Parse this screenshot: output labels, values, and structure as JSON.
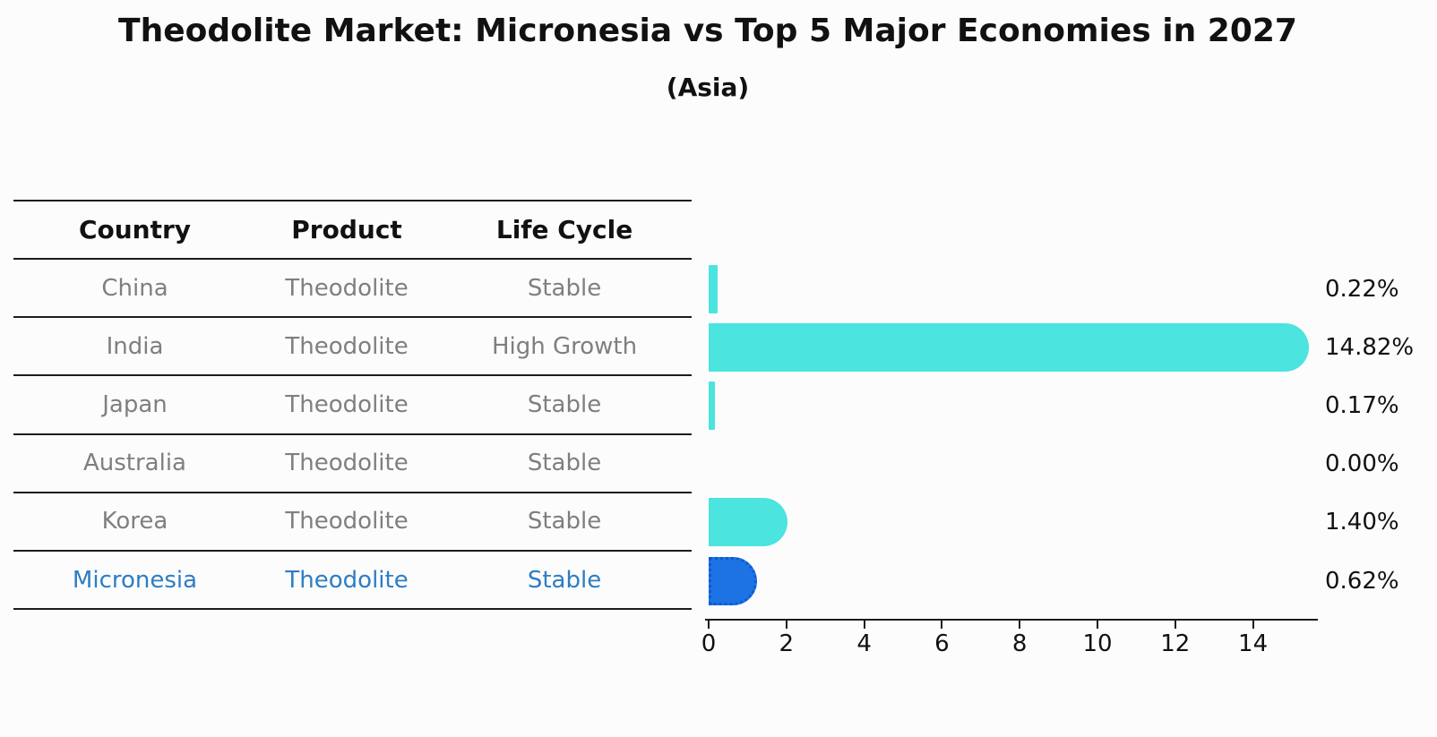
{
  "chart_data": {
    "type": "bar",
    "orientation": "horizontal",
    "title": "Theodolite Market: Micronesia vs Top 5 Major Economies in 2027",
    "subtitle": "(Asia)",
    "categories": [
      "China",
      "India",
      "Japan",
      "Australia",
      "Korea",
      "Micronesia"
    ],
    "values": [
      0.22,
      14.82,
      0.17,
      0.0,
      1.4,
      0.62
    ],
    "value_labels": [
      "0.22%",
      "14.82%",
      "0.17%",
      "0.00%",
      "1.40%",
      "0.62%"
    ],
    "unit": "%",
    "x_ticks": [
      0,
      2,
      4,
      6,
      8,
      10,
      12,
      14
    ],
    "xlim": [
      0,
      15.6
    ],
    "grid": "off",
    "legend": "none",
    "highlight_index": 5,
    "bar_style": "rounded-right-cap, highlighted bar has dotted edge"
  },
  "table": {
    "headers": [
      "Country",
      "Product",
      "Life Cycle"
    ],
    "rows": [
      {
        "country": "China",
        "product": "Theodolite",
        "life_cycle": "Stable",
        "highlight": false
      },
      {
        "country": "India",
        "product": "Theodolite",
        "life_cycle": "High Growth",
        "highlight": false
      },
      {
        "country": "Japan",
        "product": "Theodolite",
        "life_cycle": "Stable",
        "highlight": false
      },
      {
        "country": "Australia",
        "product": "Theodolite",
        "life_cycle": "Stable",
        "highlight": false
      },
      {
        "country": "Korea",
        "product": "Theodolite",
        "life_cycle": "Stable",
        "highlight": false
      },
      {
        "country": "Micronesia",
        "product": "Theodolite",
        "life_cycle": "Stable",
        "highlight": true
      }
    ]
  },
  "colors": {
    "bar": "#4BE4DF",
    "hl": "#1D73E3",
    "hl_edge": "#0C5BD3",
    "hl_text": "#2E7DC3",
    "muted": "#7F7F7F",
    "ink": "#111111",
    "line": "#1C1C1C"
  }
}
